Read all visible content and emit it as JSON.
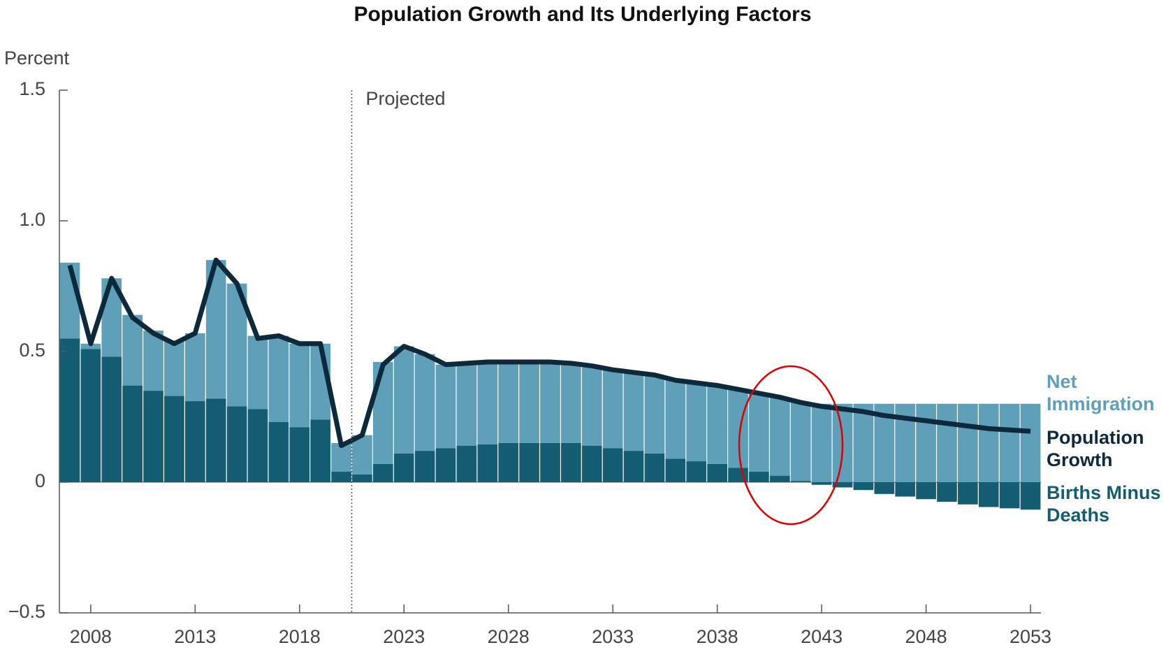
{
  "chart_data": {
    "type": "stacked-bar-line",
    "title": "Population Growth and Its Underlying Factors",
    "y_label": "Percent",
    "x": [
      2007,
      2008,
      2009,
      2010,
      2011,
      2012,
      2013,
      2014,
      2015,
      2016,
      2017,
      2018,
      2019,
      2020,
      2021,
      2022,
      2023,
      2024,
      2025,
      2026,
      2027,
      2028,
      2029,
      2030,
      2031,
      2032,
      2033,
      2034,
      2035,
      2036,
      2037,
      2038,
      2039,
      2040,
      2041,
      2042,
      2043,
      2044,
      2045,
      2046,
      2047,
      2048,
      2049,
      2050,
      2051,
      2052,
      2053
    ],
    "series": [
      {
        "name": "Births Minus Deaths",
        "color": "#135c71",
        "kind": "bar",
        "values": [
          0.55,
          0.51,
          0.48,
          0.37,
          0.35,
          0.33,
          0.31,
          0.32,
          0.29,
          0.28,
          0.23,
          0.21,
          0.24,
          0.04,
          0.03,
          0.07,
          0.11,
          0.12,
          0.13,
          0.14,
          0.145,
          0.15,
          0.15,
          0.15,
          0.15,
          0.14,
          0.13,
          0.12,
          0.11,
          0.09,
          0.08,
          0.07,
          0.055,
          0.04,
          0.025,
          0.005,
          -0.01,
          -0.02,
          -0.03,
          -0.045,
          -0.055,
          -0.065,
          -0.075,
          -0.085,
          -0.095,
          -0.1,
          -0.105
        ]
      },
      {
        "name": "Net Immigration",
        "color": "#5f9fb8",
        "kind": "bar",
        "values": [
          0.29,
          0.02,
          0.3,
          0.27,
          0.23,
          0.21,
          0.26,
          0.53,
          0.47,
          0.28,
          0.33,
          0.32,
          0.29,
          0.11,
          0.15,
          0.39,
          0.41,
          0.37,
          0.32,
          0.32,
          0.315,
          0.31,
          0.31,
          0.31,
          0.305,
          0.305,
          0.3,
          0.3,
          0.3,
          0.3,
          0.3,
          0.3,
          0.3,
          0.3,
          0.3,
          0.3,
          0.3,
          0.3,
          0.3,
          0.3,
          0.3,
          0.3,
          0.3,
          0.3,
          0.3,
          0.3,
          0.3
        ]
      },
      {
        "name": "Population Growth",
        "color": "#0d2a3d",
        "kind": "line",
        "values": [
          0.83,
          0.53,
          0.78,
          0.63,
          0.57,
          0.53,
          0.57,
          0.85,
          0.76,
          0.55,
          0.56,
          0.53,
          0.53,
          0.14,
          0.18,
          0.45,
          0.52,
          0.49,
          0.45,
          0.455,
          0.46,
          0.46,
          0.46,
          0.46,
          0.455,
          0.445,
          0.43,
          0.42,
          0.41,
          0.39,
          0.38,
          0.37,
          0.355,
          0.34,
          0.325,
          0.305,
          0.29,
          0.28,
          0.27,
          0.255,
          0.245,
          0.235,
          0.225,
          0.215,
          0.205,
          0.2,
          0.195
        ]
      }
    ],
    "annotations": [
      {
        "text": "Projected",
        "x": 2020.5
      }
    ],
    "xlim": [
      2006.5,
      2053.5
    ],
    "xticks": [
      2008,
      2013,
      2018,
      2023,
      2028,
      2033,
      2038,
      2043,
      2048,
      2053
    ],
    "ylim": [
      -0.5,
      1.5
    ],
    "yticks": [
      {
        "value": -0.5,
        "label": "−0.5"
      },
      0,
      0.5,
      {
        "value": 1,
        "label": "1.0"
      },
      1.5
    ]
  }
}
